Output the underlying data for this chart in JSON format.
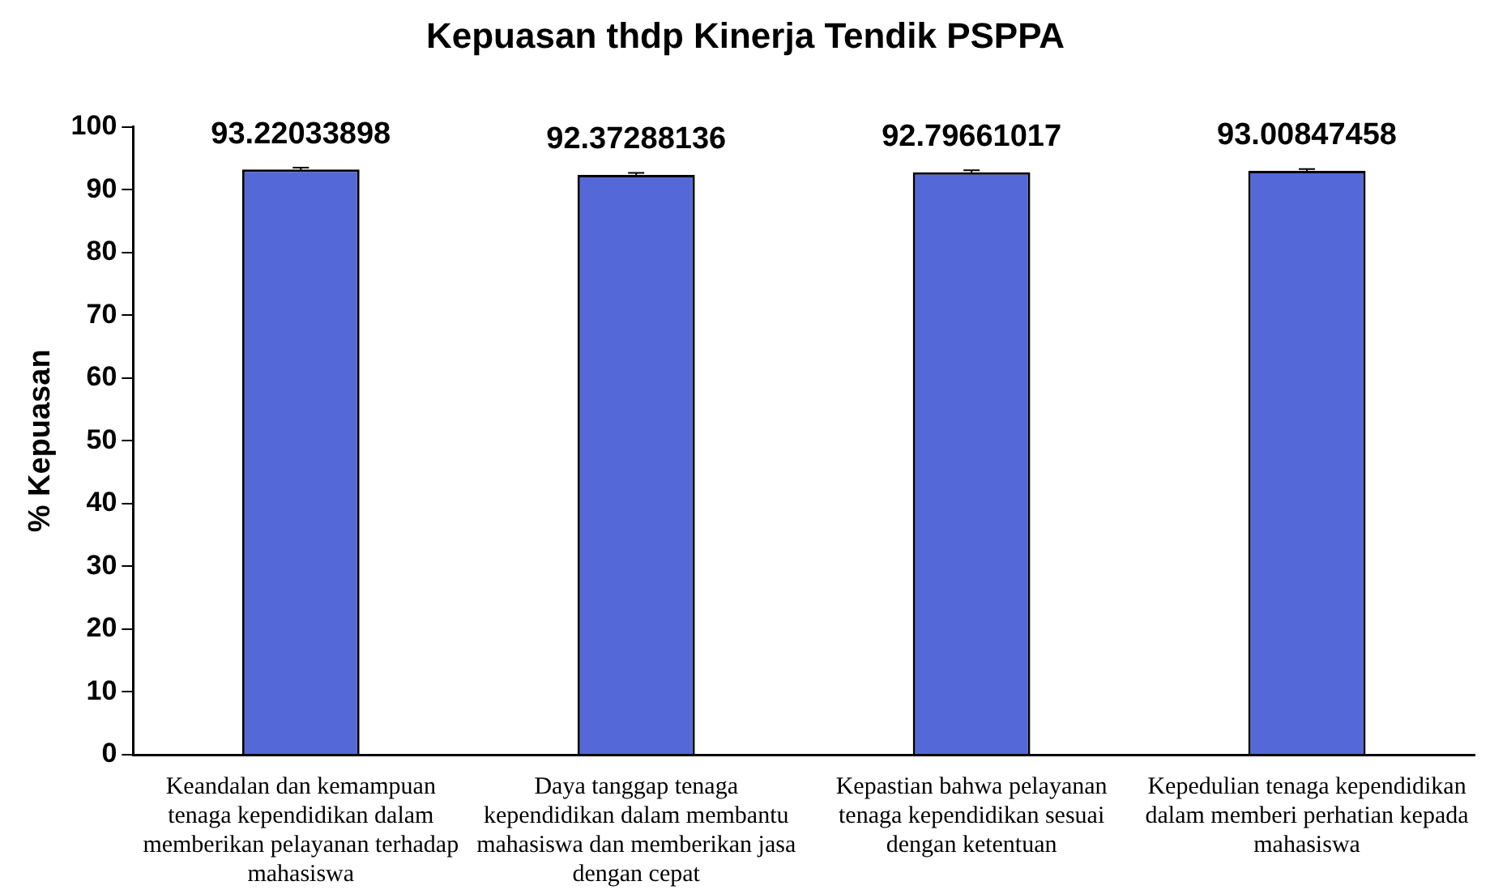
{
  "chart_data": {
    "type": "bar",
    "title": "Kepuasan thdp Kinerja Tendik PSPPA",
    "ylabel": "% Kepuasan",
    "categories": [
      "Keandalan dan kemampuan tenaga kependidikan dalam memberikan pelayanan terhadap mahasiswa",
      "Daya tanggap tenaga kependidikan dalam membantu mahasiswa dan memberikan jasa dengan cepat",
      "Kepastian bahwa pelayanan tenaga kependidikan sesuai dengan ketentuan",
      "Kepedulian tenaga kependidikan dalam memberi perhatian kepada mahasiswa"
    ],
    "values": [
      93.22033898,
      92.37288136,
      92.79661017,
      93.00847458
    ],
    "errors": [
      0.3,
      0.3,
      0.3,
      0.3
    ],
    "color": "#5468d8",
    "ylim": [
      0,
      100
    ],
    "yticks": [
      0,
      10,
      20,
      30,
      40,
      50,
      60,
      70,
      80,
      90,
      100
    ],
    "grid": false,
    "legend": false,
    "data_labels": true
  }
}
